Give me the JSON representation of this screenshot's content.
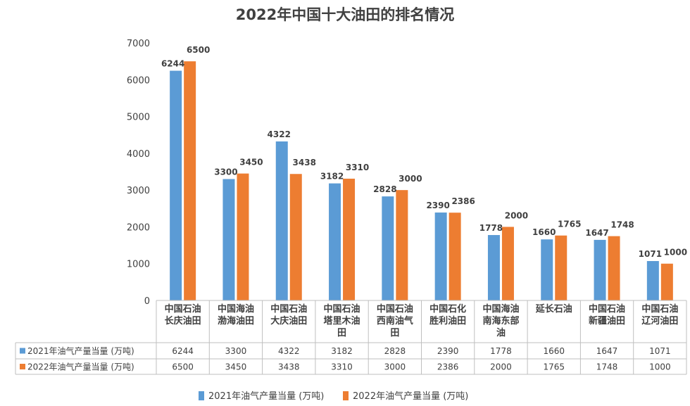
{
  "chart_data": {
    "type": "bar",
    "title": "2022年中国十大油田的排名情况",
    "categories": [
      [
        "中国石油",
        "长庆油田"
      ],
      [
        "中国海油",
        "渤海油田"
      ],
      [
        "中国石油",
        "大庆油田"
      ],
      [
        "中国石油",
        "塔里木油",
        "田"
      ],
      [
        "中国石油",
        "西南油气",
        "田"
      ],
      [
        "中国石化",
        "胜利油田"
      ],
      [
        "中国海油",
        "南海东部",
        "油"
      ],
      [
        "延长石油"
      ],
      [
        "中国石油",
        "新疆油田"
      ],
      [
        "中国石油",
        "辽河油田"
      ]
    ],
    "series": [
      {
        "name": "2021年油气产量当量 (万吨)",
        "color": "#5b9bd5",
        "values": [
          6244,
          3300,
          4322,
          3182,
          2828,
          2390,
          1778,
          1660,
          1647,
          1071
        ]
      },
      {
        "name": "2022年油气产量当量 (万吨)",
        "color": "#ed7d31",
        "values": [
          6500,
          3450,
          3438,
          3310,
          3000,
          2386,
          2000,
          1765,
          1748,
          1000
        ]
      }
    ],
    "ylim": [
      0,
      7000
    ],
    "yticks": [
      0,
      1000,
      2000,
      3000,
      4000,
      5000,
      6000,
      7000
    ],
    "xlabel": "",
    "ylabel": "",
    "grid": false,
    "legend": "bottom",
    "data_table": true
  }
}
